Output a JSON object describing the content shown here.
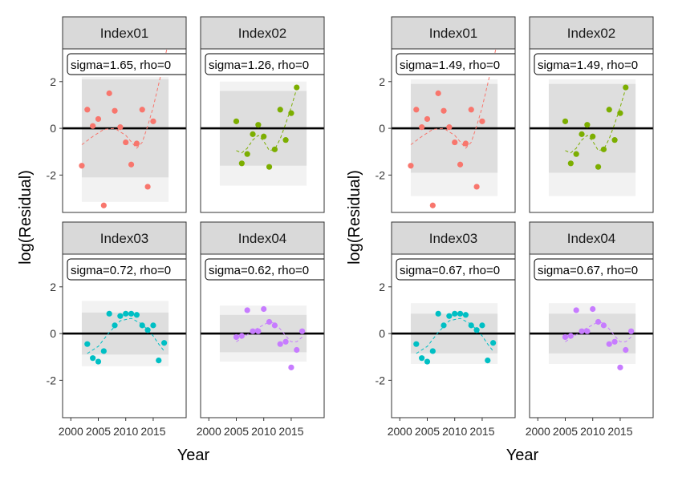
{
  "chart_data": {
    "type": "scatter",
    "xlabel": "Year",
    "ylabel": "log(Residual)",
    "ylim": [
      -3.6,
      3.4
    ],
    "xlim": [
      1998.5,
      2021
    ],
    "x_ticks": [
      2000,
      2005,
      2010,
      2015
    ],
    "x_tick_labels": [
      "2000",
      "2005",
      "2010",
      "2015"
    ],
    "y_ticks": [
      -2,
      0,
      2
    ],
    "y_tick_labels": [
      "-2",
      "0",
      "2"
    ],
    "grid": false,
    "facet_layout": "2x2 per chart",
    "charts": [
      {
        "panels": [
          {
            "label": "Index01",
            "annotation": "sigma=1.65, rho=0",
            "color": "#F8766D",
            "inner_band": [
              -2.1,
              2.1
            ],
            "outer_band": [
              -3.15,
              2.2
            ],
            "x": [
              2002,
              2003,
              2004,
              2005,
              2006,
              2007,
              2008,
              2009,
              2010,
              2011,
              2012,
              2013,
              2014,
              2015
            ],
            "y": [
              -1.6,
              0.8,
              0.1,
              0.4,
              -3.3,
              1.5,
              0.75,
              0.05,
              -0.6,
              -1.55,
              -0.65,
              0.8,
              -2.5,
              0.3
            ],
            "smooth_x": [
              2002,
              2004,
              2006,
              2008,
              2010,
              2012,
              2013,
              2014,
              2015,
              2016,
              2017.5
            ],
            "smooth_y": [
              -0.7,
              -0.35,
              -0.05,
              0.0,
              -0.3,
              -0.85,
              -0.6,
              0.1,
              0.9,
              1.9,
              3.4
            ]
          },
          {
            "label": "Index02",
            "annotation": "sigma=1.26, rho=0",
            "color": "#7CAE00",
            "inner_band": [
              -1.6,
              1.6
            ],
            "outer_band": [
              -2.45,
              2.0
            ],
            "x": [
              2005,
              2006,
              2007,
              2008,
              2009,
              2010,
              2011,
              2012,
              2013,
              2014,
              2015,
              2016
            ],
            "y": [
              0.3,
              -1.5,
              -1.1,
              -0.25,
              0.15,
              -0.35,
              -1.65,
              -0.9,
              0.8,
              -0.5,
              0.65,
              1.75
            ],
            "smooth_x": [
              2005,
              2006,
              2007,
              2008,
              2009,
              2010,
              2011,
              2012,
              2013,
              2014,
              2015,
              2016
            ],
            "smooth_y": [
              -0.95,
              -1.05,
              -0.85,
              -0.5,
              -0.3,
              -0.55,
              -0.95,
              -0.9,
              -0.45,
              0.2,
              0.9,
              1.7
            ]
          },
          {
            "label": "Index03",
            "annotation": "sigma=0.72, rho=0",
            "color": "#00BFC4",
            "inner_band": [
              -0.9,
              0.9
            ],
            "outer_band": [
              -1.4,
              1.4
            ],
            "x": [
              2003,
              2004,
              2005,
              2006,
              2007,
              2008,
              2009,
              2010,
              2011,
              2012,
              2013,
              2014,
              2015,
              2016,
              2017
            ],
            "y": [
              -0.45,
              -1.05,
              -1.2,
              -0.75,
              0.85,
              0.35,
              0.75,
              0.85,
              0.85,
              0.8,
              0.35,
              0.15,
              0.35,
              -1.15,
              -0.4
            ],
            "smooth_x": [
              2003,
              2005,
              2007,
              2009,
              2011,
              2013,
              2015,
              2016,
              2017
            ],
            "smooth_y": [
              -0.85,
              -0.55,
              0.05,
              0.55,
              0.65,
              0.4,
              -0.1,
              -0.45,
              -0.75
            ]
          },
          {
            "label": "Index04",
            "annotation": "sigma=0.62, rho=0",
            "color": "#C77CFF",
            "inner_band": [
              -0.8,
              0.8
            ],
            "outer_band": [
              -1.2,
              1.2
            ],
            "x": [
              2005,
              2006,
              2007,
              2008,
              2009,
              2010,
              2011,
              2012,
              2013,
              2014,
              2015,
              2016,
              2017
            ],
            "y": [
              -0.15,
              -0.1,
              1.0,
              0.1,
              0.1,
              1.05,
              0.5,
              0.35,
              -0.45,
              -0.35,
              -1.45,
              -0.7,
              0.1
            ],
            "smooth_x": [
              2005,
              2007,
              2009,
              2011,
              2012,
              2013,
              2014,
              2015,
              2016,
              2017
            ],
            "smooth_y": [
              -0.35,
              -0.05,
              0.25,
              0.5,
              0.45,
              0.2,
              -0.1,
              -0.35,
              -0.35,
              -0.15
            ]
          }
        ]
      },
      {
        "panels": [
          {
            "label": "Index01",
            "annotation": "sigma=1.49, rho=0",
            "color": "#F8766D",
            "inner_band": [
              -1.9,
              1.9
            ],
            "outer_band": [
              -2.9,
              2.1
            ],
            "x": [
              2002,
              2003,
              2004,
              2005,
              2006,
              2007,
              2008,
              2009,
              2010,
              2011,
              2012,
              2013,
              2014,
              2015
            ],
            "y": [
              -1.6,
              0.8,
              0.05,
              0.4,
              -3.3,
              1.5,
              0.75,
              0.05,
              -0.6,
              -1.55,
              -0.65,
              0.8,
              -2.5,
              0.3
            ],
            "smooth_x": [
              2002,
              2004,
              2006,
              2008,
              2010,
              2012,
              2013,
              2014,
              2015,
              2016,
              2017.5
            ],
            "smooth_y": [
              -0.7,
              -0.35,
              -0.05,
              0.0,
              -0.3,
              -0.85,
              -0.6,
              0.1,
              0.9,
              1.9,
              3.4
            ]
          },
          {
            "label": "Index02",
            "annotation": "sigma=1.49, rho=0",
            "color": "#7CAE00",
            "inner_band": [
              -1.9,
              1.9
            ],
            "outer_band": [
              -2.9,
              2.1
            ],
            "x": [
              2005,
              2006,
              2007,
              2008,
              2009,
              2010,
              2011,
              2012,
              2013,
              2014,
              2015,
              2016
            ],
            "y": [
              0.3,
              -1.5,
              -1.1,
              -0.25,
              0.15,
              -0.35,
              -1.65,
              -0.9,
              0.8,
              -0.5,
              0.65,
              1.75
            ],
            "smooth_x": [
              2005,
              2006,
              2007,
              2008,
              2009,
              2010,
              2011,
              2012,
              2013,
              2014,
              2015,
              2016
            ],
            "smooth_y": [
              -0.95,
              -1.05,
              -0.85,
              -0.5,
              -0.3,
              -0.55,
              -0.95,
              -0.9,
              -0.45,
              0.2,
              0.9,
              1.7
            ]
          },
          {
            "label": "Index03",
            "annotation": "sigma=0.67, rho=0",
            "color": "#00BFC4",
            "inner_band": [
              -0.85,
              0.85
            ],
            "outer_band": [
              -1.3,
              1.3
            ],
            "x": [
              2003,
              2004,
              2005,
              2006,
              2007,
              2008,
              2009,
              2010,
              2011,
              2012,
              2013,
              2014,
              2015,
              2016,
              2017
            ],
            "y": [
              -0.45,
              -1.05,
              -1.2,
              -0.75,
              0.85,
              0.35,
              0.75,
              0.85,
              0.85,
              0.8,
              0.35,
              0.15,
              0.35,
              -1.15,
              -0.4
            ],
            "smooth_x": [
              2003,
              2005,
              2007,
              2009,
              2011,
              2013,
              2015,
              2016,
              2017
            ],
            "smooth_y": [
              -0.85,
              -0.55,
              0.05,
              0.55,
              0.65,
              0.4,
              -0.1,
              -0.45,
              -0.75
            ]
          },
          {
            "label": "Index04",
            "annotation": "sigma=0.67, rho=0",
            "color": "#C77CFF",
            "inner_band": [
              -0.85,
              0.85
            ],
            "outer_band": [
              -1.3,
              1.3
            ],
            "x": [
              2005,
              2006,
              2007,
              2008,
              2009,
              2010,
              2011,
              2012,
              2013,
              2014,
              2015,
              2016,
              2017
            ],
            "y": [
              -0.15,
              -0.1,
              1.0,
              0.1,
              0.1,
              1.05,
              0.5,
              0.35,
              -0.45,
              -0.35,
              -1.45,
              -0.7,
              0.1
            ],
            "smooth_x": [
              2005,
              2007,
              2009,
              2011,
              2012,
              2013,
              2014,
              2015,
              2016,
              2017
            ],
            "smooth_y": [
              -0.35,
              -0.05,
              0.25,
              0.5,
              0.45,
              0.2,
              -0.1,
              -0.35,
              -0.35,
              -0.15
            ]
          }
        ]
      }
    ]
  }
}
